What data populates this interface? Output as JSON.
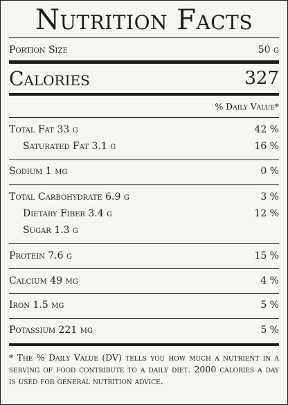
{
  "title": "Nutrition Facts",
  "portion": {
    "label": "Portion Size",
    "value": "50 g"
  },
  "calories": {
    "label": "Calories",
    "value": "327"
  },
  "dv_header": "% Daily Value*",
  "nutrients": [
    {
      "label": "Total Fat 33 g",
      "dv": "42 %"
    },
    {
      "label": "Saturated Fat 3.1 g",
      "dv": "16 %"
    },
    {
      "label": "Sodium 1 mg",
      "dv": "0 %"
    },
    {
      "label": "Total Carbohydrate 6.9 g",
      "dv": "3 %"
    },
    {
      "label": "Dietary Fiber 3.4 g",
      "dv": "12 %"
    },
    {
      "label": "Sugar 1.3 g",
      "dv": ""
    },
    {
      "label": "Protein 7.6 g",
      "dv": "15 %"
    },
    {
      "label": "Calcium 49 mg",
      "dv": "4 %"
    },
    {
      "label": "Iron 1.5 mg",
      "dv": "5 %"
    },
    {
      "label": "Potassium 221 mg",
      "dv": "5 %"
    }
  ],
  "footnote": "* The % Daily Value (DV) tells you how much a nutrient in a serving of food contribute to a daily diet. 2000 calories a day is used for general nutrition advice."
}
